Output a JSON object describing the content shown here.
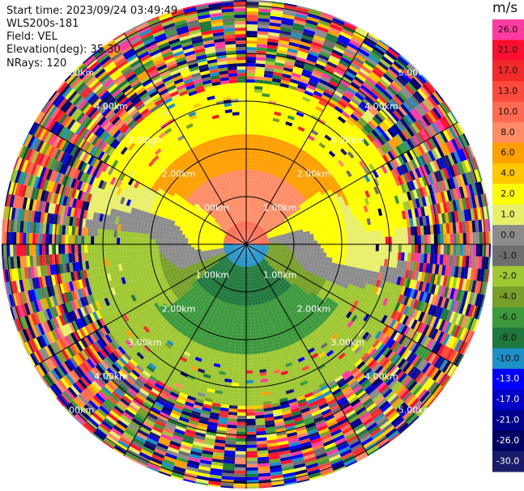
{
  "info": {
    "start_time": "Start time: 2023/09/24 03:49:49",
    "site": "WLS200s-181",
    "field": "Field: VEL",
    "elevation": "Elevation(deg): 35.30",
    "nrays": "NRays: 120"
  },
  "colorbar": {
    "unit": "m/s",
    "levels": [
      {
        "label": "26.0",
        "color": "#ff3aa0"
      },
      {
        "label": "21.0",
        "color": "#ff0f2f"
      },
      {
        "label": "17.0",
        "color": "#f22a2a"
      },
      {
        "label": "13.0",
        "color": "#ff4a3c"
      },
      {
        "label": "10.0",
        "color": "#ff6a50"
      },
      {
        "label": "8.0",
        "color": "#ff8c64"
      },
      {
        "label": "6.0",
        "color": "#ffa000"
      },
      {
        "label": "4.0",
        "color": "#ffc800"
      },
      {
        "label": "2.0",
        "color": "#ffff00"
      },
      {
        "label": "1.0",
        "color": "#e8ef6a"
      },
      {
        "label": "0.0",
        "color": "#8c8c8c"
      },
      {
        "label": "-1.0",
        "color": "#6e6e6e"
      },
      {
        "label": "-2.0",
        "color": "#a0c832"
      },
      {
        "label": "-4.0",
        "color": "#78a028"
      },
      {
        "label": "-6.0",
        "color": "#3c9a3c"
      },
      {
        "label": "-8.0",
        "color": "#1e783c"
      },
      {
        "label": "-10.0",
        "color": "#1e90c8"
      },
      {
        "label": "-13.0",
        "color": "#0000ff"
      },
      {
        "label": "-17.0",
        "color": "#0000c8"
      },
      {
        "label": "-21.0",
        "color": "#00008c"
      },
      {
        "label": "-26.0",
        "color": "#000064"
      },
      {
        "label": "-30.0",
        "color": "#1a1a6a"
      }
    ]
  },
  "range_labels": {
    "r1": "1.00km",
    "r2": "2.00km",
    "r3": "3.00km",
    "r4": "4.00km",
    "r5": "5.00km"
  },
  "chart_data": {
    "type": "heatmap",
    "projection": "polar (PPI)",
    "field": "VEL",
    "units": "m/s",
    "nrays": 120,
    "range_rings_km": [
      1,
      2,
      3,
      4,
      5
    ],
    "azimuth_lines_deg": [
      0,
      30,
      60,
      90,
      120,
      150,
      180,
      210,
      240,
      270,
      300,
      330
    ],
    "colorbar_ticks": [
      26.0,
      21.0,
      17.0,
      13.0,
      10.0,
      8.0,
      6.0,
      4.0,
      2.0,
      1.0,
      0.0,
      -1.0,
      -2.0,
      -4.0,
      -6.0,
      -8.0,
      -10.0,
      -13.0,
      -17.0,
      -21.0,
      -26.0,
      -30.0
    ],
    "vmin": -30.0,
    "vmax": 30.0,
    "grid": true
  }
}
